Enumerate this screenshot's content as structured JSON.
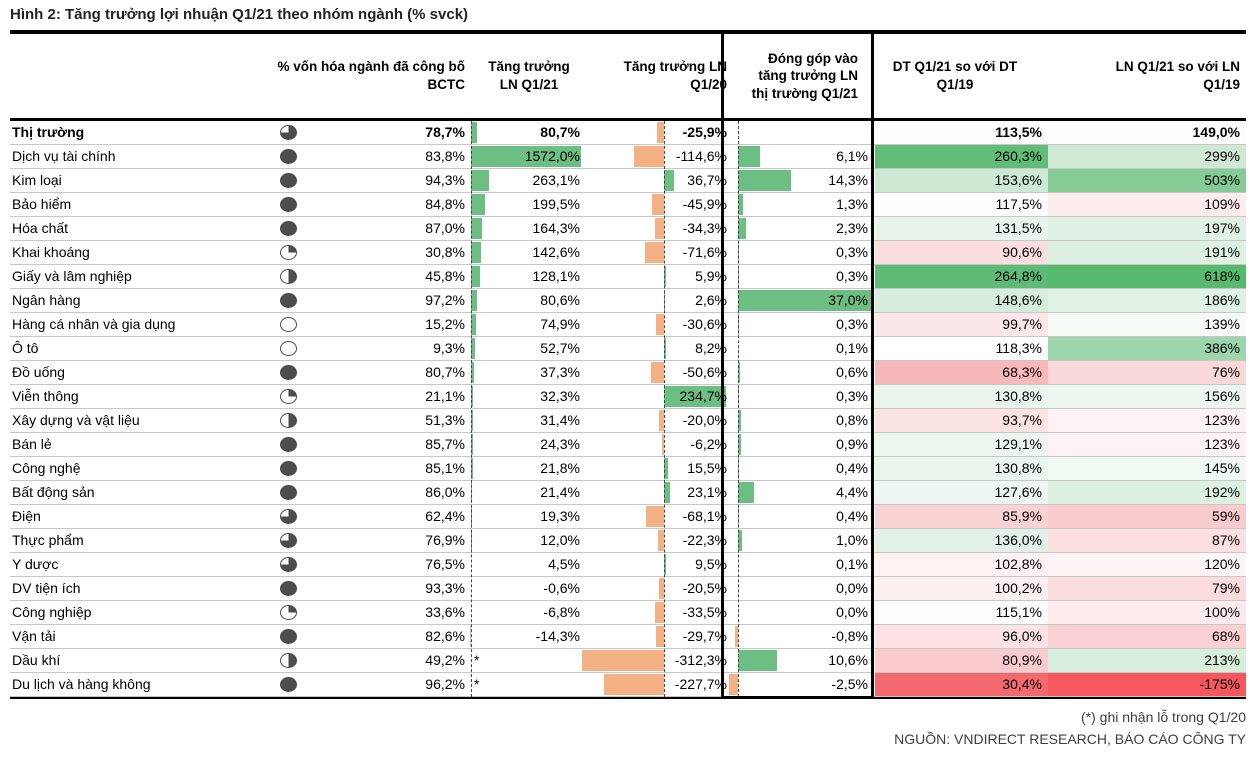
{
  "title": "Hình 2: Tăng trưởng lợi nhuận Q1/21 theo nhóm ngành (% svck)",
  "columns": {
    "cap": "% vốn hóa ngành đã công bố BCTC",
    "g21": "Tăng trưởng LN Q1/21",
    "g20": "Tăng trưởng LN Q1/20",
    "contrib": "Đóng góp vào tăng trưởng LN thị trường Q1/21",
    "dt": "DT Q1/21 so với DT Q1/19",
    "ln": "LN Q1/21 so với LN Q1/19"
  },
  "footnotes": {
    "note1": "(*) ghi nhận lỗ trong Q1/20",
    "note2": "NGUỒN: VNDIRECT RESEARCH, BÁO CÁO CÔNG TY"
  },
  "colors": {
    "positive_bar": "#6cbe83",
    "negative_bar": "#f4b183",
    "pie_fill": "#4d4d4d",
    "strong_green": "#57b96e",
    "strong_red": "#f4696e"
  },
  "chart_data": {
    "type": "table",
    "title": "Tăng trưởng lợi nhuận Q1/21 theo nhóm ngành (% svck)",
    "legend_note": "green bars = positive growth, orange bars = negative growth; last two columns heat-shaded red→green",
    "rows": [
      {
        "name": "Thị trường",
        "bold": true,
        "pie": 75,
        "cap": "78,7%",
        "star": false,
        "g21": "80,7%",
        "g21_v": 80.7,
        "g20": "-25,9%",
        "g20_v": -25.9,
        "contrib": "",
        "contrib_v": null,
        "dt": "113,5%",
        "dt_bg": "#fdfdfe",
        "ln": "149,0%",
        "ln_bg": "#fdfdfe"
      },
      {
        "name": "Dịch vụ tài chính",
        "bold": false,
        "pie": 100,
        "cap": "83,8%",
        "star": false,
        "g21": "1572,0%",
        "g21_v": 1572.0,
        "g20": "-114,6%",
        "g20_v": -114.6,
        "contrib": "6,1%",
        "contrib_v": 6.1,
        "dt": "260,3%",
        "dt_bg": "#60bc77",
        "ln": "299%",
        "ln_bg": "#cfe9d5"
      },
      {
        "name": "Kim loại",
        "bold": false,
        "pie": 100,
        "cap": "94,3%",
        "star": false,
        "g21": "263,1%",
        "g21_v": 263.1,
        "g20": "36,7%",
        "g20_v": 36.7,
        "contrib": "14,3%",
        "contrib_v": 14.3,
        "dt": "153,6%",
        "dt_bg": "#cde9d4",
        "ln": "503%",
        "ln_bg": "#84cb96"
      },
      {
        "name": "Bảo hiểm",
        "bold": false,
        "pie": 100,
        "cap": "84,8%",
        "star": false,
        "g21": "199,5%",
        "g21_v": 199.5,
        "g20": "-45,9%",
        "g20_v": -45.9,
        "contrib": "1,3%",
        "contrib_v": 1.3,
        "dt": "117,5%",
        "dt_bg": "#fdfdfe",
        "ln": "109%",
        "ln_bg": "#fcecee"
      },
      {
        "name": "Hóa chất",
        "bold": false,
        "pie": 100,
        "cap": "87,0%",
        "star": false,
        "g21": "164,3%",
        "g21_v": 164.3,
        "g20": "-34,3%",
        "g20_v": -34.3,
        "contrib": "2,3%",
        "contrib_v": 2.3,
        "dt": "131,5%",
        "dt_bg": "#e8f4eb",
        "ln": "197%",
        "ln_bg": "#dff1e4"
      },
      {
        "name": "Khai khoáng",
        "bold": false,
        "pie": 25,
        "cap": "30,8%",
        "star": false,
        "g21": "142,6%",
        "g21_v": 142.6,
        "g20": "-71,6%",
        "g20_v": -71.6,
        "contrib": "0,3%",
        "contrib_v": 0.3,
        "dt": "90,6%",
        "dt_bg": "#fbdee0",
        "ln": "191%",
        "ln_bg": "#ddf0e2"
      },
      {
        "name": "Giấy và lâm nghiệp",
        "bold": false,
        "pie": 50,
        "cap": "45,8%",
        "star": false,
        "g21": "128,1%",
        "g21_v": 128.1,
        "g20": "5,9%",
        "g20_v": 5.9,
        "contrib": "0,3%",
        "contrib_v": 0.3,
        "dt": "264,8%",
        "dt_bg": "#5ebb75",
        "ln": "618%",
        "ln_bg": "#57b96e"
      },
      {
        "name": "Ngân hàng",
        "bold": false,
        "pie": 100,
        "cap": "97,2%",
        "star": false,
        "g21": "80,6%",
        "g21_v": 80.6,
        "g20": "2,6%",
        "g20_v": 2.6,
        "contrib": "37,0%",
        "contrib_v": 37.0,
        "dt": "148,6%",
        "dt_bg": "#d6ecdc",
        "ln": "186%",
        "ln_bg": "#e0f1e5"
      },
      {
        "name": "Hàng cá nhân và gia dụng",
        "bold": false,
        "pie": 0,
        "cap": "15,2%",
        "star": false,
        "g21": "74,9%",
        "g21_v": 74.9,
        "g20": "-30,6%",
        "g20_v": -30.6,
        "contrib": "0,3%",
        "contrib_v": 0.3,
        "dt": "99,7%",
        "dt_bg": "#fbe7e8",
        "ln": "139%",
        "ln_bg": "#f7fbf8"
      },
      {
        "name": "Ô tô",
        "bold": false,
        "pie": 0,
        "cap": "9,3%",
        "star": false,
        "g21": "52,7%",
        "g21_v": 52.7,
        "g20": "8,2%",
        "g20_v": 8.2,
        "contrib": "0,1%",
        "contrib_v": 0.1,
        "dt": "118,3%",
        "dt_bg": "#feffff",
        "ln": "386%",
        "ln_bg": "#9dd5ac"
      },
      {
        "name": "Đồ uống",
        "bold": false,
        "pie": 100,
        "cap": "80,7%",
        "star": false,
        "g21": "37,3%",
        "g21_v": 37.3,
        "g20": "-50,6%",
        "g20_v": -50.6,
        "contrib": "0,6%",
        "contrib_v": 0.6,
        "dt": "68,3%",
        "dt_bg": "#f8b7ba",
        "ln": "76%",
        "ln_bg": "#fad8da"
      },
      {
        "name": "Viễn thông",
        "bold": false,
        "pie": 25,
        "cap": "21,1%",
        "star": false,
        "g21": "32,3%",
        "g21_v": 32.3,
        "g20": "234,7%",
        "g20_v": 234.7,
        "contrib": "0,3%",
        "contrib_v": 0.3,
        "dt": "130,8%",
        "dt_bg": "#e9f4ec",
        "ln": "156%",
        "ln_bg": "#edf7f0"
      },
      {
        "name": "Xây dựng và vật liệu",
        "bold": false,
        "pie": 50,
        "cap": "51,3%",
        "star": false,
        "g21": "31,4%",
        "g21_v": 31.4,
        "g20": "-20,0%",
        "g20_v": -20.0,
        "contrib": "0,8%",
        "contrib_v": 0.8,
        "dt": "93,7%",
        "dt_bg": "#fbe2e3",
        "ln": "123%",
        "ln_bg": "#fdf3f4"
      },
      {
        "name": "Bán lẻ",
        "bold": false,
        "pie": 100,
        "cap": "85,7%",
        "star": false,
        "g21": "24,3%",
        "g21_v": 24.3,
        "g20": "-6,2%",
        "g20_v": -6.2,
        "contrib": "0,9%",
        "contrib_v": 0.9,
        "dt": "129,1%",
        "dt_bg": "#ecf6ef",
        "ln": "123%",
        "ln_bg": "#fdf3f4"
      },
      {
        "name": "Công nghệ",
        "bold": false,
        "pie": 100,
        "cap": "85,1%",
        "star": false,
        "g21": "21,8%",
        "g21_v": 21.8,
        "g20": "15,5%",
        "g20_v": 15.5,
        "contrib": "0,4%",
        "contrib_v": 0.4,
        "dt": "130,8%",
        "dt_bg": "#e9f4ec",
        "ln": "145%",
        "ln_bg": "#f1f9f3"
      },
      {
        "name": "Bất động sản",
        "bold": false,
        "pie": 100,
        "cap": "86,0%",
        "star": false,
        "g21": "21,4%",
        "g21_v": 21.4,
        "g20": "23,1%",
        "g20_v": 23.1,
        "contrib": "4,4%",
        "contrib_v": 4.4,
        "dt": "127,6%",
        "dt_bg": "#edf6f0",
        "ln": "192%",
        "ln_bg": "#ddf0e2"
      },
      {
        "name": "Điện",
        "bold": false,
        "pie": 75,
        "cap": "62,4%",
        "star": false,
        "g21": "19,3%",
        "g21_v": 19.3,
        "g20": "-68,1%",
        "g20_v": -68.1,
        "contrib": "0,4%",
        "contrib_v": 0.4,
        "dt": "85,9%",
        "dt_bg": "#f9d2d4",
        "ln": "59%",
        "ln_bg": "#f8cccf"
      },
      {
        "name": "Thực phẩm",
        "bold": false,
        "pie": 75,
        "cap": "76,9%",
        "star": false,
        "g21": "12,0%",
        "g21_v": 12.0,
        "g20": "-22,3%",
        "g20_v": -22.3,
        "contrib": "1,0%",
        "contrib_v": 1.0,
        "dt": "136,0%",
        "dt_bg": "#e2f1e7",
        "ln": "87%",
        "ln_bg": "#fbdfe1"
      },
      {
        "name": "Y dược",
        "bold": false,
        "pie": 75,
        "cap": "76,5%",
        "star": false,
        "g21": "4,5%",
        "g21_v": 4.5,
        "g20": "9,5%",
        "g20_v": 9.5,
        "contrib": "0,1%",
        "contrib_v": 0.1,
        "dt": "102,8%",
        "dt_bg": "#fdf1f2",
        "ln": "120%",
        "ln_bg": "#fdf5f6"
      },
      {
        "name": "DV tiện ích",
        "bold": false,
        "pie": 100,
        "cap": "93,3%",
        "star": false,
        "g21": "-0,6%",
        "g21_v": -0.6,
        "g20": "-20,5%",
        "g20_v": -20.5,
        "contrib": "0,0%",
        "contrib_v": 0.0,
        "dt": "100,2%",
        "dt_bg": "#fceff0",
        "ln": "79%",
        "ln_bg": "#fadcde"
      },
      {
        "name": "Công nghiệp",
        "bold": false,
        "pie": 25,
        "cap": "33,6%",
        "star": false,
        "g21": "-6,8%",
        "g21_v": -6.8,
        "g20": "-33,5%",
        "g20_v": -33.5,
        "contrib": "0,0%",
        "contrib_v": 0.0,
        "dt": "115,1%",
        "dt_bg": "#fdfdff",
        "ln": "100%",
        "ln_bg": "#fcebec"
      },
      {
        "name": "Vận tải",
        "bold": false,
        "pie": 100,
        "cap": "82,6%",
        "star": false,
        "g21": "-14,3%",
        "g21_v": -14.3,
        "g20": "-29,7%",
        "g20_v": -29.7,
        "contrib": "-0,8%",
        "contrib_v": -0.8,
        "dt": "96,0%",
        "dt_bg": "#fbe3e5",
        "ln": "68%",
        "ln_bg": "#f9d1d4"
      },
      {
        "name": "Dầu khí",
        "bold": false,
        "pie": 50,
        "cap": "49,2%",
        "star": true,
        "g21": "",
        "g21_v": null,
        "g20": "-312,3%",
        "g20_v": -312.3,
        "contrib": "10,6%",
        "contrib_v": 10.6,
        "dt": "80,9%",
        "dt_bg": "#f9cbce",
        "ln": "213%",
        "ln_bg": "#d8eedd"
      },
      {
        "name": "Du lịch và hàng không",
        "bold": false,
        "pie": 100,
        "cap": "96,2%",
        "star": true,
        "g21": "",
        "g21_v": null,
        "g20": "-227,7%",
        "g20_v": -227.7,
        "contrib": "-2,5%",
        "contrib_v": -2.5,
        "dt": "30,4%",
        "dt_bg": "#f4696e",
        "ln": "-175%",
        "ln_bg": "#f4575e"
      }
    ]
  }
}
